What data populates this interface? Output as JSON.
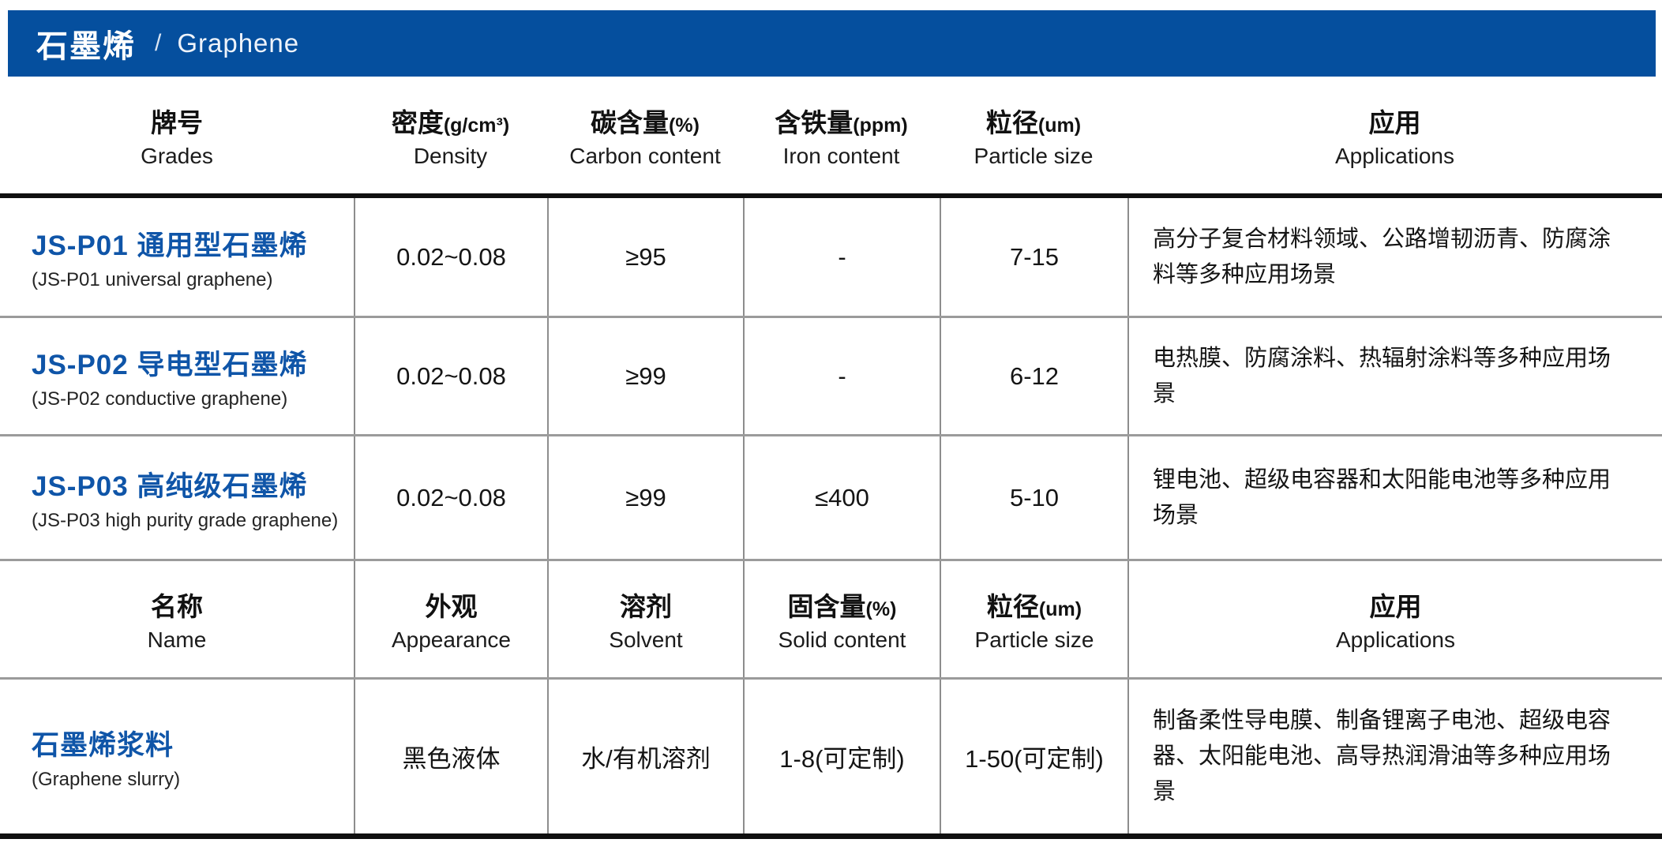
{
  "colors": {
    "banner_bg": "#054f9e",
    "brand_blue": "#0f55a8",
    "rule_black": "#101010",
    "rule_gray": "#9b9b9b"
  },
  "banner": {
    "title_zh": "石墨烯",
    "separator": "/",
    "title_en": "Graphene"
  },
  "t1": {
    "headers": [
      {
        "zh": "牌号",
        "unit": "",
        "en": "Grades"
      },
      {
        "zh": "密度",
        "unit": "(g/cm³)",
        "en": "Density"
      },
      {
        "zh": "碳含量",
        "unit": "(%)",
        "en": "Carbon content"
      },
      {
        "zh": "含铁量",
        "unit": "(ppm)",
        "en": "Iron content"
      },
      {
        "zh": "粒径",
        "unit": "(um)",
        "en": "Particle size"
      },
      {
        "zh": "应用",
        "unit": "",
        "en": "Applications"
      }
    ],
    "rows": [
      {
        "name_zh": "JS-P01 通用型石墨烯",
        "name_en": "(JS-P01 universal graphene)",
        "density": "0.02~0.08",
        "carbon": "≥95",
        "iron": "-",
        "particle": "7-15",
        "applications": "高分子复合材料领域、公路增韧沥青、防腐涂料等多种应用场景"
      },
      {
        "name_zh": "JS-P02 导电型石墨烯",
        "name_en": "(JS-P02 conductive graphene)",
        "density": "0.02~0.08",
        "carbon": "≥99",
        "iron": "-",
        "particle": "6-12",
        "applications": "电热膜、防腐涂料、热辐射涂料等多种应用场景"
      },
      {
        "name_zh": "JS-P03 高纯级石墨烯",
        "name_en": "(JS-P03 high purity grade graphene)",
        "density": "0.02~0.08",
        "carbon": "≥99",
        "iron": "≤400",
        "particle": "5-10",
        "applications": "锂电池、超级电容器和太阳能电池等多种应用场景"
      }
    ]
  },
  "t2": {
    "headers": [
      {
        "zh": "名称",
        "unit": "",
        "en": "Name"
      },
      {
        "zh": "外观",
        "unit": "",
        "en": "Appearance"
      },
      {
        "zh": "溶剂",
        "unit": "",
        "en": "Solvent"
      },
      {
        "zh": "固含量",
        "unit": "(%)",
        "en": "Solid content"
      },
      {
        "zh": "粒径",
        "unit": "(um)",
        "en": "Particle size"
      },
      {
        "zh": "应用",
        "unit": "",
        "en": "Applications"
      }
    ],
    "rows": [
      {
        "name_zh": "石墨烯浆料",
        "name_en": "(Graphene slurry)",
        "appearance": "黑色液体",
        "solvent": "水/有机溶剂",
        "solid": "1-8(可定制)",
        "particle": "1-50(可定制)",
        "applications": "制备柔性导电膜、制备锂离子电池、超级电容器、太阳能电池、高导热润滑油等多种应用场景"
      }
    ]
  }
}
